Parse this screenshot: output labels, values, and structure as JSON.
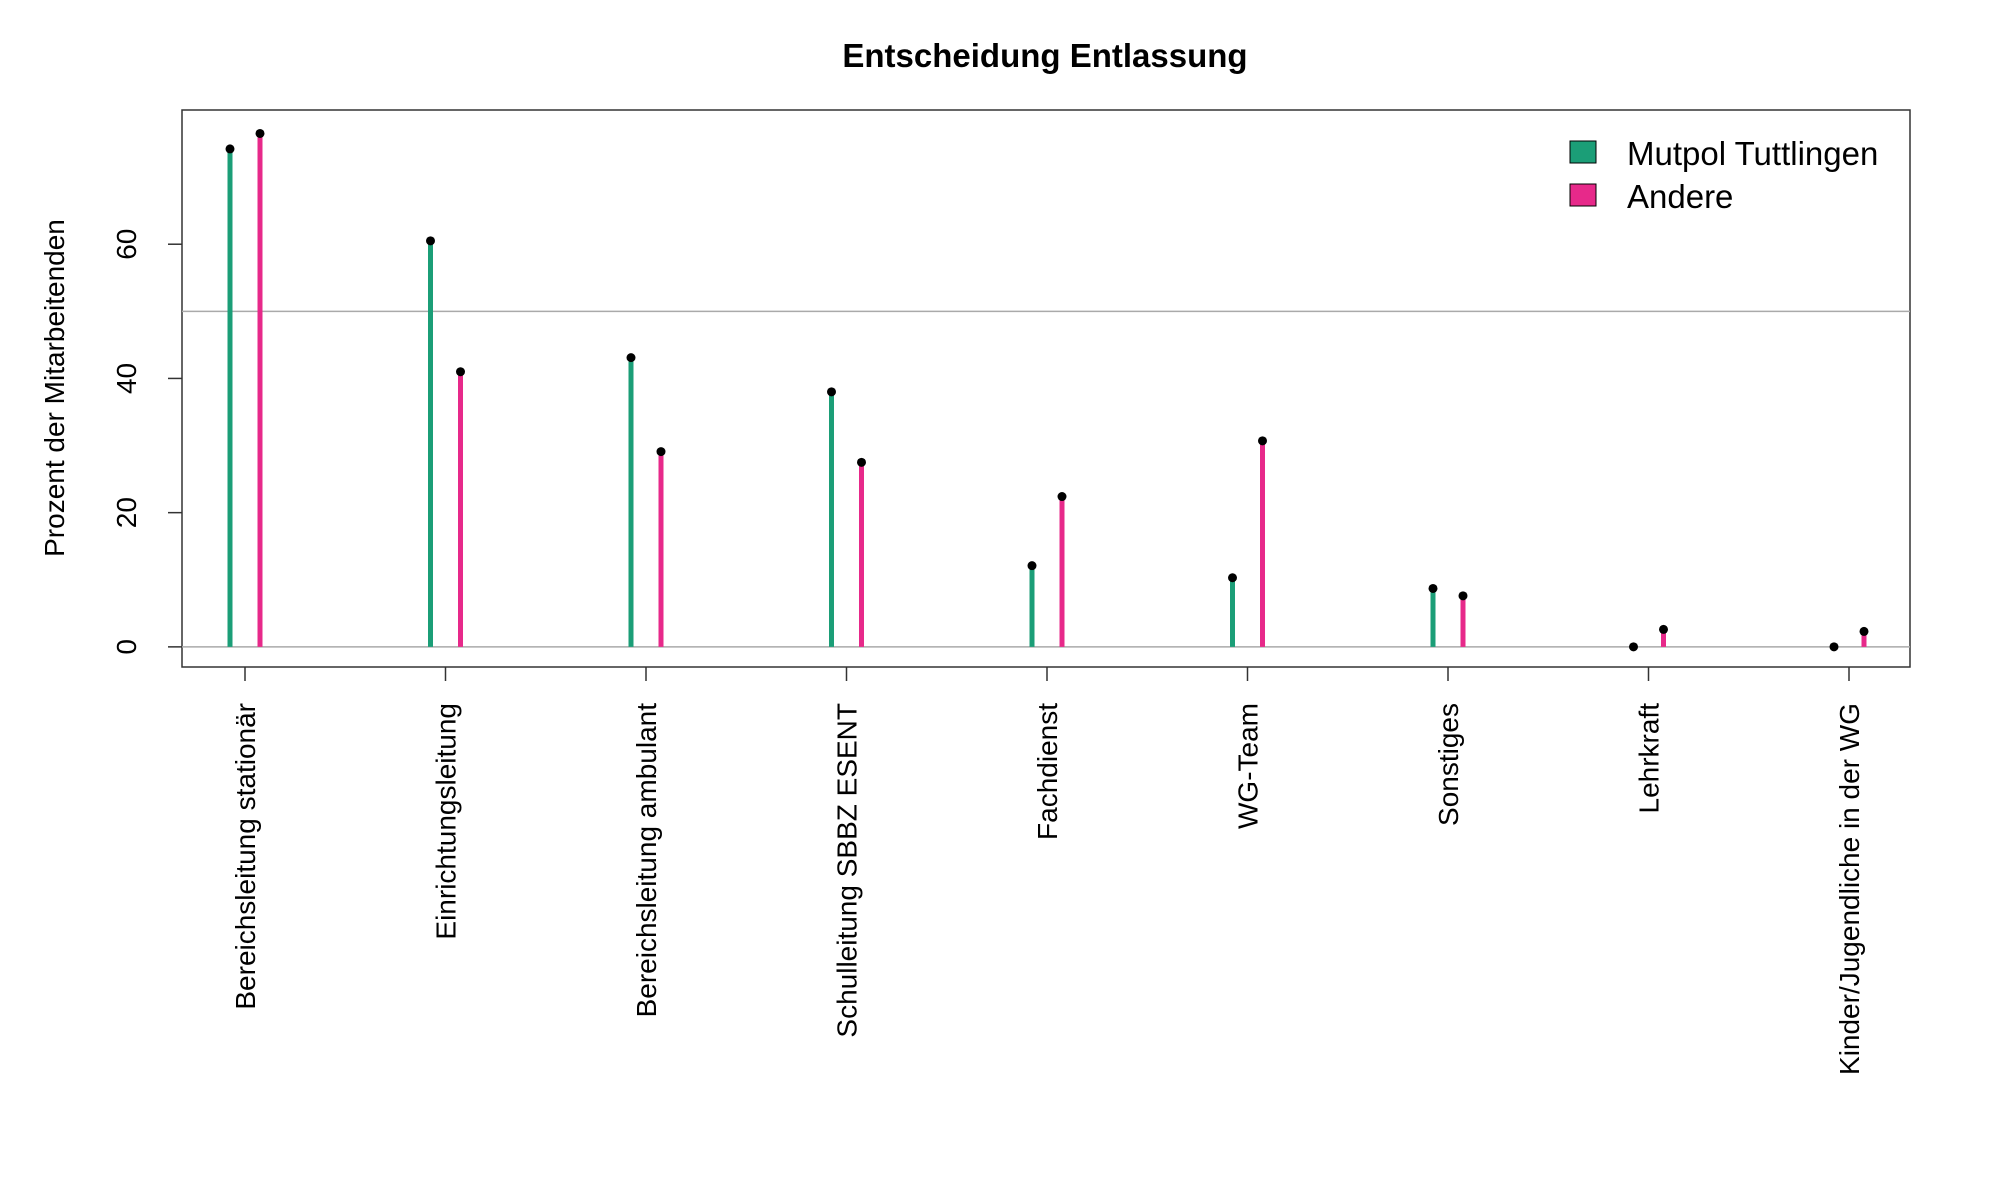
{
  "chart_data": {
    "type": "lollipop",
    "title": "Entscheidung Entlassung",
    "ylabel": "Prozent der Mitarbeitenden",
    "xlabel": "",
    "ylim": [
      -3,
      80
    ],
    "yticks": [
      0,
      20,
      40,
      60
    ],
    "reference_line": 50,
    "legend_position": "top-right",
    "categories": [
      "Bereichsleitung stationär",
      "Einrichtungsleitung",
      "Bereichsleitung ambulant",
      "Schulleitung SBBZ ESENT",
      "Fachdienst",
      "WG-Team",
      "Sonstiges",
      "Lehrkraft",
      "Kinder/Jugendliche in der WG"
    ],
    "series": [
      {
        "name": "Mutpol Tuttlingen",
        "color": "#1b9e77",
        "values": [
          74.2,
          60.5,
          43.1,
          38.0,
          12.1,
          10.3,
          8.7,
          0,
          0
        ]
      },
      {
        "name": "Andere",
        "color": "#e7298a",
        "values": [
          76.5,
          41.0,
          29.1,
          27.5,
          22.4,
          30.7,
          7.6,
          2.6,
          2.3
        ]
      }
    ]
  }
}
